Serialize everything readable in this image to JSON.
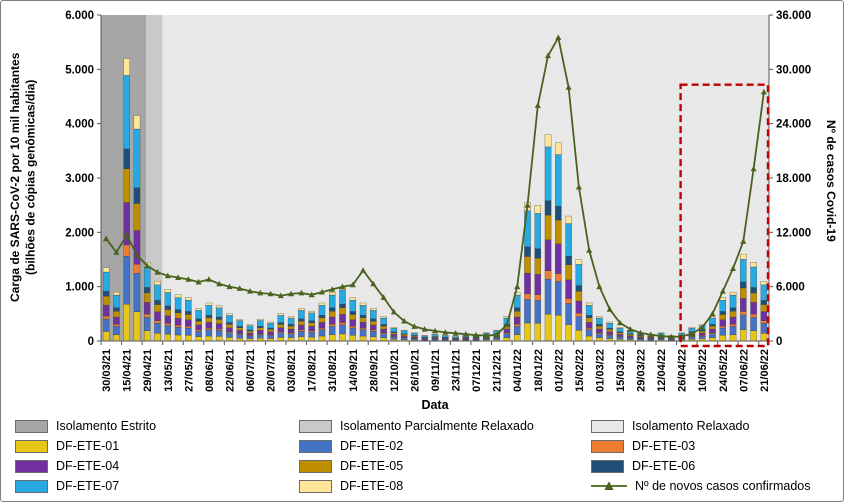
{
  "chart_data": {
    "type": "combo-stacked-bar-line",
    "xlabel": "Data",
    "ylabel_left_lines": [
      "Carga de SARS-CoV-2 por 10 mil habitantes",
      "(bilhões de cópias genômicas/dia)"
    ],
    "ylabel_right": "Nº de casos Covid-19",
    "y_left": {
      "min": 0,
      "max": 6000,
      "tick_labels": [
        "0",
        "1.000",
        "2.000",
        "3.000",
        "4.000",
        "5.000",
        "6.000"
      ]
    },
    "y_right": {
      "min": 0,
      "max": 36000,
      "tick_labels": [
        "0",
        "6.000",
        "12.000",
        "18.000",
        "24.000",
        "30.000",
        "36.000"
      ]
    },
    "x_tick_labels": [
      "30/03/21",
      "15/04/21",
      "29/04/21",
      "13/05/21",
      "27/05/21",
      "08/06/21",
      "22/06/21",
      "06/07/21",
      "20/07/21",
      "03/08/21",
      "17/08/21",
      "31/08/21",
      "14/09/21",
      "28/09/21",
      "12/10/21",
      "26/10/21",
      "09/11/21",
      "23/11/21",
      "07/12/21",
      "21/12/21",
      "04/01/22",
      "18/01/22",
      "01/02/22",
      "15/02/22",
      "01/03/22",
      "15/03/22",
      "29/03/22",
      "12/04/22",
      "26/04/22",
      "10/05/22",
      "24/05/22",
      "07/06/22",
      "21/06/22"
    ],
    "bars_per_x_label": 2,
    "series": [
      {
        "name": "DF-ETE-01",
        "color": "#E6C619",
        "fraction": 0.13
      },
      {
        "name": "DF-ETE-02",
        "color": "#4472C4",
        "fraction": 0.17
      },
      {
        "name": "DF-ETE-03",
        "color": "#ED7D31",
        "fraction": 0.04
      },
      {
        "name": "DF-ETE-04",
        "color": "#7030A0",
        "fraction": 0.15
      },
      {
        "name": "DF-ETE-05",
        "color": "#BF8F00",
        "fraction": 0.12
      },
      {
        "name": "DF-ETE-06",
        "color": "#1F4E79",
        "fraction": 0.07
      },
      {
        "name": "DF-ETE-07",
        "color": "#27AAE1",
        "fraction": 0.26
      },
      {
        "name": "DF-ETE-08",
        "color": "#FFE699",
        "fraction": 0.06
      }
    ],
    "stack_note": "stacked segment value = bar_total x series fraction (composition estimated from image)",
    "bar_totals": [
      1350,
      900,
      5200,
      4150,
      1450,
      1100,
      950,
      850,
      800,
      600,
      700,
      650,
      500,
      400,
      300,
      400,
      350,
      500,
      450,
      600,
      550,
      700,
      900,
      1000,
      800,
      700,
      600,
      450,
      250,
      200,
      150,
      100,
      120,
      100,
      80,
      100,
      100,
      150,
      200,
      450,
      900,
      2550,
      2500,
      3800,
      3650,
      2300,
      1500,
      700,
      450,
      350,
      250,
      200,
      150,
      120,
      150,
      100,
      150,
      250,
      300,
      450,
      800,
      900,
      1600,
      1450,
      1100
    ],
    "line": {
      "name": "Nº de novos casos confirmados",
      "color": "#4A621E",
      "values": [
        11300,
        9800,
        11700,
        9500,
        8300,
        7600,
        7200,
        7000,
        6800,
        6500,
        6800,
        6300,
        6000,
        5800,
        5500,
        5300,
        5200,
        5000,
        5200,
        5300,
        5100,
        5400,
        5700,
        6000,
        6200,
        7800,
        6300,
        4800,
        3200,
        2200,
        1600,
        1300,
        1100,
        950,
        850,
        750,
        650,
        600,
        700,
        1800,
        6000,
        15000,
        26000,
        31500,
        33500,
        28000,
        17000,
        10000,
        6000,
        3500,
        2000,
        1300,
        900,
        700,
        550,
        450,
        500,
        800,
        1500,
        3000,
        5500,
        8000,
        11000,
        19000,
        27500
      ]
    },
    "regions": [
      {
        "name": "Isolamento Estrito",
        "color": "#A6A6A6",
        "from_bar": 0,
        "to_bar": 4.4
      },
      {
        "name": "Isolamento Parcialmente Relaxado",
        "color": "#C9C9C9",
        "from_bar": 4.4,
        "to_bar": 6.0
      },
      {
        "name": "Isolamento Relaxado",
        "color": "#E8E8E8",
        "from_bar": 6.0,
        "to_bar": 65
      }
    ],
    "highlight_box": {
      "color": "#C00000",
      "from_bar": 56.4,
      "to_bar": 64.9,
      "top_value_right": 28300
    }
  },
  "legend": {
    "items": [
      {
        "label": "Isolamento Estrito",
        "color": "#A6A6A6",
        "type": "swatch"
      },
      {
        "label": "Isolamento Parcialmente Relaxado",
        "color": "#C9C9C9",
        "type": "swatch"
      },
      {
        "label": "Isolamento Relaxado",
        "color": "#E8E8E8",
        "type": "swatch"
      },
      {
        "label": "DF-ETE-01",
        "color": "#E6C619",
        "type": "swatch"
      },
      {
        "label": "DF-ETE-02",
        "color": "#4472C4",
        "type": "swatch"
      },
      {
        "label": "DF-ETE-03",
        "color": "#ED7D31",
        "type": "swatch"
      },
      {
        "label": "DF-ETE-04",
        "color": "#7030A0",
        "type": "swatch"
      },
      {
        "label": "DF-ETE-05",
        "color": "#BF8F00",
        "type": "swatch"
      },
      {
        "label": "DF-ETE-06",
        "color": "#1F4E79",
        "type": "swatch"
      },
      {
        "label": "DF-ETE-07",
        "color": "#27AAE1",
        "type": "swatch"
      },
      {
        "label": "DF-ETE-08",
        "color": "#FFE699",
        "type": "swatch"
      },
      {
        "label": "Nº de novos casos confirmados",
        "color": "#4A621E",
        "type": "line"
      }
    ]
  }
}
